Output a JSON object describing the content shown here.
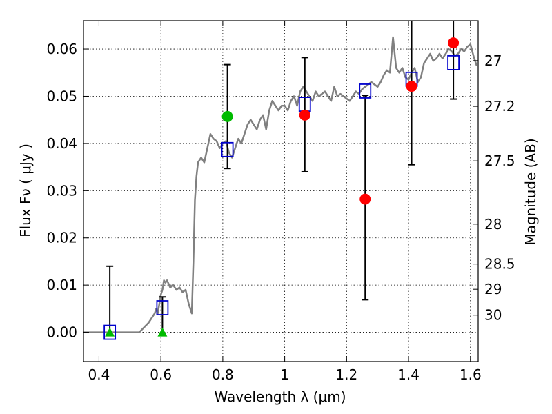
{
  "chart_data": {
    "type": "scatter",
    "xlabel": "Wavelength  λ (μm)",
    "ylabel": "Flux  Fν  ( μJy )",
    "y2label": "Magnitude (AB)",
    "xlim": [
      0.35,
      1.625
    ],
    "ylim": [
      -0.0062,
      0.066
    ],
    "grid": true,
    "x_ticks": [
      {
        "value": 0.4,
        "label": "0.4"
      },
      {
        "value": 0.6,
        "label": "0.6"
      },
      {
        "value": 0.8,
        "label": "0.8"
      },
      {
        "value": 1.0,
        "label": "1"
      },
      {
        "value": 1.2,
        "label": "1.2"
      },
      {
        "value": 1.4,
        "label": "1.4"
      },
      {
        "value": 1.6,
        "label": "1.6"
      }
    ],
    "y_ticks": [
      {
        "value": 0.0,
        "label": "0.00"
      },
      {
        "value": 0.01,
        "label": "0.01"
      },
      {
        "value": 0.02,
        "label": "0.02"
      },
      {
        "value": 0.03,
        "label": "0.03"
      },
      {
        "value": 0.04,
        "label": "0.04"
      },
      {
        "value": 0.05,
        "label": "0.05"
      },
      {
        "value": 0.06,
        "label": "0.06"
      }
    ],
    "mag_ticks": [
      {
        "value": 27,
        "label": "27"
      },
      {
        "value": 27.2,
        "label": "27.2"
      },
      {
        "value": 27.5,
        "label": "27.5"
      },
      {
        "value": 28,
        "label": "28"
      },
      {
        "value": 28.5,
        "label": "28.5"
      },
      {
        "value": 29,
        "label": "29"
      },
      {
        "value": 30,
        "label": "30"
      }
    ],
    "sed_color": "#808080",
    "sed_x": [
      0.35,
      0.42,
      0.48,
      0.53,
      0.56,
      0.58,
      0.585,
      0.59,
      0.595,
      0.6,
      0.605,
      0.61,
      0.615,
      0.62,
      0.63,
      0.64,
      0.65,
      0.66,
      0.67,
      0.68,
      0.69,
      0.7,
      0.705,
      0.71,
      0.715,
      0.72,
      0.73,
      0.74,
      0.75,
      0.76,
      0.77,
      0.78,
      0.79,
      0.8,
      0.81,
      0.82,
      0.83,
      0.84,
      0.85,
      0.86,
      0.87,
      0.88,
      0.89,
      0.9,
      0.91,
      0.92,
      0.93,
      0.94,
      0.95,
      0.96,
      0.97,
      0.98,
      0.99,
      1.0,
      1.01,
      1.02,
      1.03,
      1.04,
      1.05,
      1.06,
      1.07,
      1.08,
      1.09,
      1.1,
      1.11,
      1.12,
      1.13,
      1.14,
      1.15,
      1.16,
      1.17,
      1.18,
      1.19,
      1.2,
      1.21,
      1.22,
      1.23,
      1.24,
      1.25,
      1.26,
      1.27,
      1.28,
      1.29,
      1.3,
      1.31,
      1.32,
      1.33,
      1.34,
      1.35,
      1.36,
      1.37,
      1.38,
      1.39,
      1.4,
      1.41,
      1.42,
      1.43,
      1.44,
      1.45,
      1.46,
      1.47,
      1.48,
      1.49,
      1.5,
      1.51,
      1.52,
      1.53,
      1.54,
      1.55,
      1.56,
      1.57,
      1.58,
      1.59,
      1.6,
      1.61,
      1.62
    ],
    "sed_y": [
      0.0,
      0.0,
      0.0,
      0.0,
      0.002,
      0.004,
      0.005,
      0.004,
      0.006,
      0.008,
      0.009,
      0.011,
      0.0105,
      0.011,
      0.0095,
      0.01,
      0.009,
      0.0095,
      0.0085,
      0.009,
      0.006,
      0.004,
      0.015,
      0.028,
      0.033,
      0.036,
      0.037,
      0.036,
      0.039,
      0.042,
      0.041,
      0.0405,
      0.039,
      0.04,
      0.0405,
      0.038,
      0.037,
      0.039,
      0.041,
      0.04,
      0.042,
      0.044,
      0.045,
      0.044,
      0.043,
      0.045,
      0.046,
      0.043,
      0.047,
      0.049,
      0.048,
      0.047,
      0.048,
      0.048,
      0.047,
      0.049,
      0.05,
      0.048,
      0.051,
      0.052,
      0.051,
      0.05,
      0.049,
      0.051,
      0.05,
      0.0505,
      0.051,
      0.05,
      0.049,
      0.052,
      0.05,
      0.0505,
      0.05,
      0.0495,
      0.049,
      0.05,
      0.051,
      0.0505,
      0.0515,
      0.052,
      0.0525,
      0.053,
      0.0525,
      0.052,
      0.053,
      0.0545,
      0.0555,
      0.055,
      0.0625,
      0.056,
      0.055,
      0.056,
      0.054,
      0.0535,
      0.055,
      0.056,
      0.053,
      0.054,
      0.057,
      0.058,
      0.059,
      0.0575,
      0.058,
      0.059,
      0.058,
      0.059,
      0.06,
      0.0595,
      0.0585,
      0.059,
      0.06,
      0.0595,
      0.0605,
      0.061,
      0.0585,
      0.0565
    ],
    "model_points": {
      "color": "#0000cc",
      "x": [
        0.435,
        0.605,
        0.815,
        1.065,
        1.26,
        1.41,
        1.545
      ],
      "y": [
        0.0,
        0.0052,
        0.0387,
        0.0483,
        0.0511,
        0.0536,
        0.0571
      ]
    },
    "detections": {
      "color": "#ff0000",
      "x": [
        1.065,
        1.26,
        1.41,
        1.545
      ],
      "y": [
        0.046,
        0.0282,
        0.0521,
        0.0613
      ],
      "err_low": [
        0.034,
        0.0069,
        0.0355,
        0.0494
      ],
      "err_high": [
        0.0582,
        0.0502,
        0.0665,
        0.0665
      ]
    },
    "green_point": {
      "color": "#00bb00",
      "x": 0.815,
      "y": 0.0457,
      "err_low": 0.0347,
      "err_high": 0.0567
    },
    "upper_limits": {
      "color": "#00bb00",
      "x": [
        0.435,
        0.605
      ],
      "y": [
        0.0,
        0.0
      ],
      "err_low": [
        -0.0005,
        -0.0005
      ],
      "err_high": [
        0.014,
        0.0075
      ]
    }
  }
}
